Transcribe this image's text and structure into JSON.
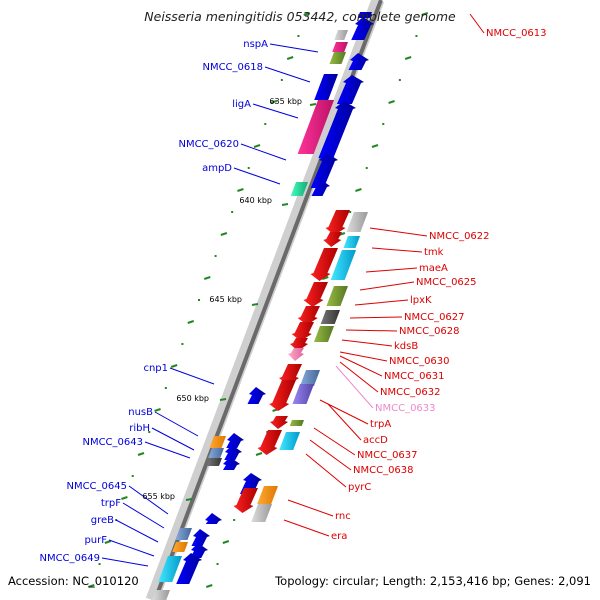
{
  "map": {
    "title": "Neisseria meningitidis 053442, complete genome",
    "accession": "Accession: NC_010120",
    "topology": "Topology: circular; Length: 2,153,416 bp; Genes: 2,091",
    "kbp_labels": [
      "635 kbp",
      "640 kbp",
      "645 kbp",
      "650 kbp",
      "655 kbp"
    ],
    "left_genes": [
      "nspA",
      "NMCC_0618",
      "ligA",
      "NMCC_0620",
      "ampD",
      "cnp1",
      "nusB",
      "ribH",
      "NMCC_0643",
      "NMCC_0645",
      "trpF",
      "greB",
      "purF",
      "NMCC_0649"
    ],
    "right_genes": [
      "NMCC_0613",
      "NMCC_0622",
      "tmk",
      "maeA",
      "NMCC_0625",
      "lpxK",
      "NMCC_0627",
      "NMCC_0628",
      "kdsB",
      "NMCC_0630",
      "NMCC_0631",
      "NMCC_0632",
      "NMCC_0633",
      "trpA",
      "accD",
      "NMCC_0637",
      "NMCC_0638",
      "pyrC",
      "rnc",
      "era"
    ],
    "colors": {
      "forward_strand": "#0000dd",
      "reverse_strand": "#dd0000",
      "pseudo_gene": "#ee88cc",
      "gc_marker": "#228822"
    }
  }
}
